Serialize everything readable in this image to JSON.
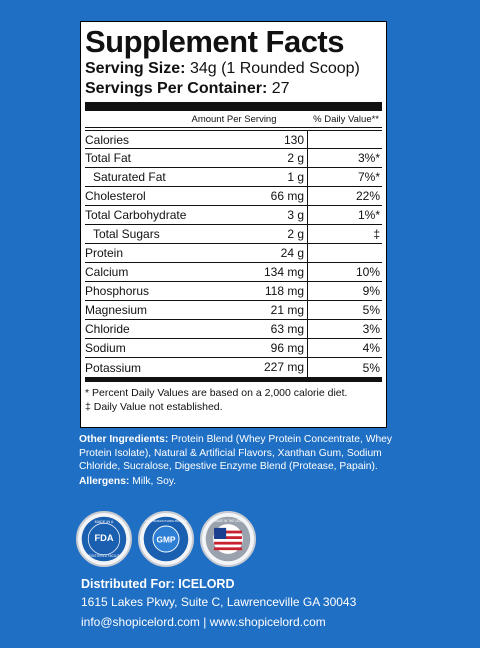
{
  "panel": {
    "title": "Supplement Facts",
    "serving_size_label": "Serving Size:",
    "serving_size_value": "34g (1 Rounded Scoop)",
    "servings_label": "Servings Per Container:",
    "servings_value": "27",
    "col_amount": "Amount Per Serving",
    "col_dv": "% Daily Value**",
    "nutrients": [
      {
        "name": "Calories",
        "amount": "130",
        "dv": ""
      },
      {
        "name": "Total Fat",
        "amount": "2 g",
        "dv": "3%*"
      },
      {
        "name": "Saturated Fat",
        "amount": "1 g",
        "dv": "7%*"
      },
      {
        "name": "Cholesterol",
        "amount": "66 mg",
        "dv": "22%"
      },
      {
        "name": "Total Carbohydrate",
        "amount": "3 g",
        "dv": "1%*"
      },
      {
        "name": "Total Sugars",
        "amount": "2 g",
        "dv": "‡"
      },
      {
        "name": "Protein",
        "amount": "24 g",
        "dv": ""
      },
      {
        "name": "Calcium",
        "amount": "134 mg",
        "dv": "10%"
      },
      {
        "name": "Phosphorus",
        "amount": "118 mg",
        "dv": "9%"
      },
      {
        "name": "Magnesium",
        "amount": "21 mg",
        "dv": "5%"
      },
      {
        "name": "Chloride",
        "amount": "63 mg",
        "dv": "3%"
      },
      {
        "name": "Sodium",
        "amount": "96 mg",
        "dv": "4%"
      },
      {
        "name": "Potassium",
        "amount": "227 mg",
        "dv": "5%"
      }
    ],
    "footnote_1": "* Percent Daily Values are based on a 2,000 calorie diet.",
    "footnote_2": "‡ Daily Value not established."
  },
  "ingredients": {
    "label": "Other Ingredients:",
    "text": "Protein Blend (Whey Protein Concentrate, Whey Protein Isolate), Natural & Artificial Flavors, Xanthan Gum, Sodium Chloride, Sucralose, Digestive Enzyme Blend (Protease, Papain).",
    "allergens_label": "Allergens:",
    "allergens_text": "Milk, Soy."
  },
  "badges": [
    {
      "icon": "fda-registered-facility-seal-icon",
      "top_text": "MADE IN A",
      "center_text": "FDA",
      "bottom_text": "REGISTERED FACILITY"
    },
    {
      "icon": "gmp-seal-icon",
      "center_text": "GMP",
      "ring_text": "GOOD MANUFACTURING PRACTICE"
    },
    {
      "icon": "made-in-usa-seal-icon",
      "ring_text": "MADE IN THE USA"
    }
  ],
  "distributor": {
    "heading": "Distributed For: ICELORD",
    "address": "1615 Lakes Pkwy, Suite C, Lawrenceville GA 30043",
    "contact": "info@shopicelord.com | www.shopicelord.com"
  },
  "colors": {
    "background": "#1f6fc4",
    "panel": "#ffffff",
    "ink": "#111111",
    "badge_blue": "#1b5fb0",
    "flag_red": "#c8202f"
  }
}
